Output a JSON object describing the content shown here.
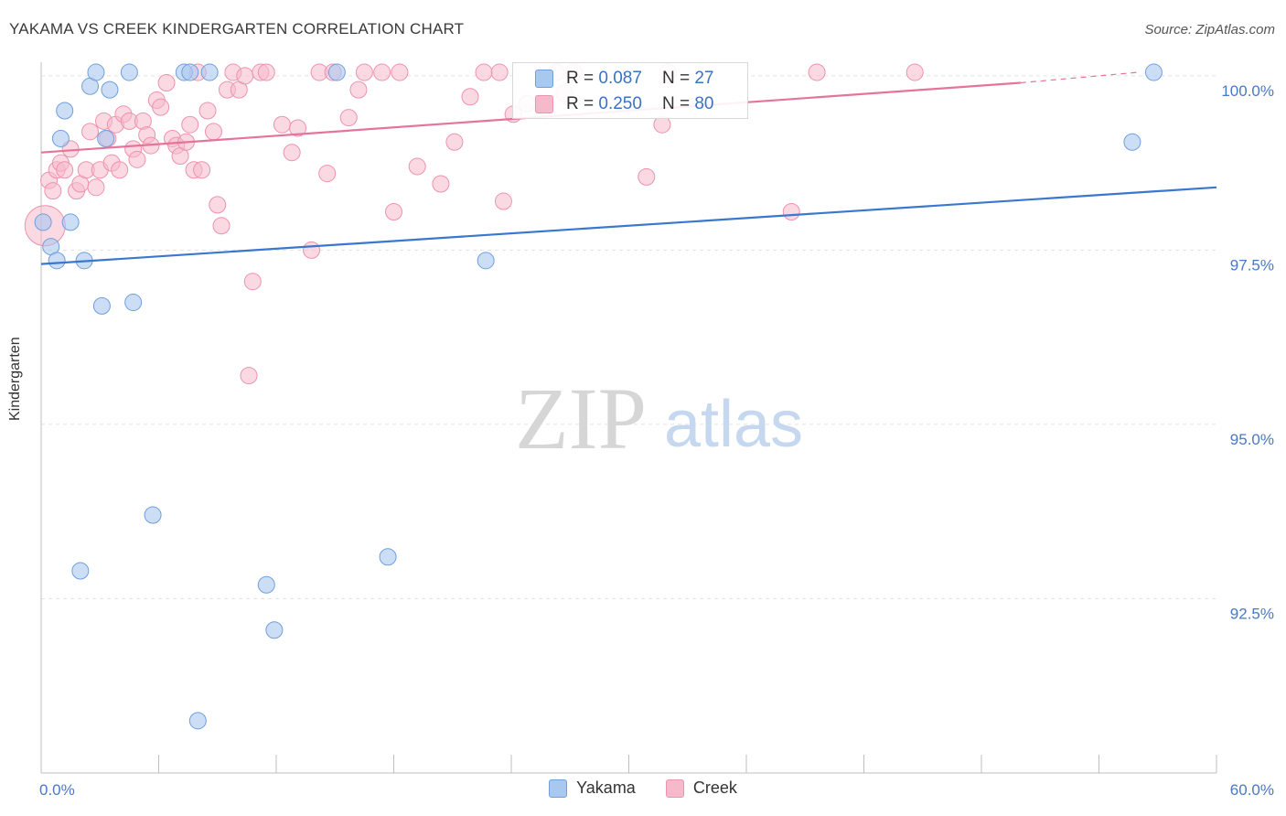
{
  "title": "YAKAMA VS CREEK KINDERGARTEN CORRELATION CHART",
  "source": "Source: ZipAtlas.com",
  "watermark": {
    "zip": "ZIP",
    "atlas": "atlas"
  },
  "colors": {
    "yakama_fill": "#a9c8f0",
    "yakama_stroke": "#6f9fdc",
    "yakama_line": "#3a78cf",
    "creek_fill": "#f6b9cc",
    "creek_stroke": "#ee92ae",
    "creek_line": "#e6739a",
    "axis_text": "#4a78c4",
    "grid": "#e3e3e3"
  },
  "legend_box": {
    "yakama": {
      "r_label": "R = ",
      "r_value": "0.087",
      "n_label": "N = ",
      "n_value": "27"
    },
    "creek": {
      "r_label": "R = ",
      "r_value": "0.250",
      "n_label": "N = ",
      "n_value": "80"
    }
  },
  "chart_data": {
    "type": "scatter",
    "title": "YAKAMA VS CREEK KINDERGARTEN CORRELATION CHART",
    "xlabel": "",
    "ylabel": "Kindergarten",
    "xlim": [
      0,
      60
    ],
    "ylim": [
      90.0,
      100.3
    ],
    "x_tick_labels": [
      "0.0%",
      "60.0%"
    ],
    "y_ticks": [
      92.5,
      95.0,
      97.5,
      100.0
    ],
    "y_tick_labels": [
      "92.5%",
      "95.0%",
      "97.5%",
      "100.0%"
    ],
    "grid": true,
    "legend_position": "bottom",
    "series": [
      {
        "name": "Yakama",
        "trend": {
          "x": [
            0,
            60
          ],
          "y": [
            97.3,
            98.4
          ]
        },
        "points": [
          {
            "x": 0.1,
            "y": 97.9
          },
          {
            "x": 0.5,
            "y": 97.55
          },
          {
            "x": 0.8,
            "y": 97.35
          },
          {
            "x": 1.0,
            "y": 99.1
          },
          {
            "x": 1.2,
            "y": 99.5
          },
          {
            "x": 1.5,
            "y": 97.9
          },
          {
            "x": 2.2,
            "y": 97.35
          },
          {
            "x": 2.5,
            "y": 99.85
          },
          {
            "x": 2.8,
            "y": 100.05
          },
          {
            "x": 3.1,
            "y": 96.7
          },
          {
            "x": 3.3,
            "y": 99.1
          },
          {
            "x": 3.5,
            "y": 99.8
          },
          {
            "x": 4.5,
            "y": 100.05
          },
          {
            "x": 4.7,
            "y": 96.75
          },
          {
            "x": 5.7,
            "y": 93.7
          },
          {
            "x": 7.3,
            "y": 100.05
          },
          {
            "x": 7.6,
            "y": 100.05
          },
          {
            "x": 8.6,
            "y": 100.05
          },
          {
            "x": 8.0,
            "y": 90.75
          },
          {
            "x": 11.5,
            "y": 92.7
          },
          {
            "x": 11.9,
            "y": 92.05
          },
          {
            "x": 15.1,
            "y": 100.05
          },
          {
            "x": 17.7,
            "y": 93.1
          },
          {
            "x": 22.7,
            "y": 97.35
          },
          {
            "x": 2.0,
            "y": 92.9
          },
          {
            "x": 55.7,
            "y": 99.05
          },
          {
            "x": 56.8,
            "y": 100.05
          }
        ]
      },
      {
        "name": "Creek",
        "trend": {
          "x": [
            0,
            50
          ],
          "y": [
            98.9,
            99.9
          ]
        },
        "trend_dashed": {
          "x": [
            50,
            56
          ],
          "y": [
            99.9,
            100.05
          ]
        },
        "points": [
          {
            "x": 0.2,
            "y": 97.85
          },
          {
            "x": 0.4,
            "y": 98.5
          },
          {
            "x": 0.6,
            "y": 98.35
          },
          {
            "x": 0.8,
            "y": 98.65
          },
          {
            "x": 1.0,
            "y": 98.75
          },
          {
            "x": 1.2,
            "y": 98.65
          },
          {
            "x": 1.5,
            "y": 98.95
          },
          {
            "x": 1.8,
            "y": 98.35
          },
          {
            "x": 2.0,
            "y": 98.45
          },
          {
            "x": 2.3,
            "y": 98.65
          },
          {
            "x": 2.5,
            "y": 99.2
          },
          {
            "x": 2.8,
            "y": 98.4
          },
          {
            "x": 3.0,
            "y": 98.65
          },
          {
            "x": 3.2,
            "y": 99.35
          },
          {
            "x": 3.4,
            "y": 99.1
          },
          {
            "x": 3.6,
            "y": 98.75
          },
          {
            "x": 3.8,
            "y": 99.3
          },
          {
            "x": 4.0,
            "y": 98.65
          },
          {
            "x": 4.2,
            "y": 99.45
          },
          {
            "x": 4.5,
            "y": 99.35
          },
          {
            "x": 4.7,
            "y": 98.95
          },
          {
            "x": 4.9,
            "y": 98.8
          },
          {
            "x": 5.2,
            "y": 99.35
          },
          {
            "x": 5.4,
            "y": 99.15
          },
          {
            "x": 5.6,
            "y": 99.0
          },
          {
            "x": 5.9,
            "y": 99.65
          },
          {
            "x": 6.1,
            "y": 99.55
          },
          {
            "x": 6.4,
            "y": 99.9
          },
          {
            "x": 6.7,
            "y": 99.1
          },
          {
            "x": 6.9,
            "y": 99.0
          },
          {
            "x": 7.1,
            "y": 98.85
          },
          {
            "x": 7.4,
            "y": 99.05
          },
          {
            "x": 7.6,
            "y": 99.3
          },
          {
            "x": 7.8,
            "y": 98.65
          },
          {
            "x": 8.0,
            "y": 100.05
          },
          {
            "x": 8.2,
            "y": 98.65
          },
          {
            "x": 8.5,
            "y": 99.5
          },
          {
            "x": 8.8,
            "y": 99.2
          },
          {
            "x": 9.0,
            "y": 98.15
          },
          {
            "x": 9.2,
            "y": 97.85
          },
          {
            "x": 9.5,
            "y": 99.8
          },
          {
            "x": 9.8,
            "y": 100.05
          },
          {
            "x": 10.1,
            "y": 99.8
          },
          {
            "x": 10.4,
            "y": 100.0
          },
          {
            "x": 10.6,
            "y": 95.7
          },
          {
            "x": 10.8,
            "y": 97.05
          },
          {
            "x": 11.2,
            "y": 100.05
          },
          {
            "x": 11.5,
            "y": 100.05
          },
          {
            "x": 12.3,
            "y": 99.3
          },
          {
            "x": 12.8,
            "y": 98.9
          },
          {
            "x": 13.1,
            "y": 99.25
          },
          {
            "x": 13.8,
            "y": 97.5
          },
          {
            "x": 14.2,
            "y": 100.05
          },
          {
            "x": 14.9,
            "y": 100.05
          },
          {
            "x": 14.6,
            "y": 98.6
          },
          {
            "x": 15.7,
            "y": 99.4
          },
          {
            "x": 16.2,
            "y": 99.8
          },
          {
            "x": 16.5,
            "y": 100.05
          },
          {
            "x": 17.4,
            "y": 100.05
          },
          {
            "x": 18.0,
            "y": 98.05
          },
          {
            "x": 18.3,
            "y": 100.05
          },
          {
            "x": 19.2,
            "y": 98.7
          },
          {
            "x": 20.4,
            "y": 98.45
          },
          {
            "x": 21.1,
            "y": 99.05
          },
          {
            "x": 21.9,
            "y": 99.7
          },
          {
            "x": 22.6,
            "y": 100.05
          },
          {
            "x": 23.4,
            "y": 100.05
          },
          {
            "x": 23.6,
            "y": 98.2
          },
          {
            "x": 24.1,
            "y": 99.45
          },
          {
            "x": 24.8,
            "y": 99.6
          },
          {
            "x": 25.7,
            "y": 99.55
          },
          {
            "x": 26.7,
            "y": 99.75
          },
          {
            "x": 27.2,
            "y": 100.05
          },
          {
            "x": 30.9,
            "y": 98.55
          },
          {
            "x": 31.7,
            "y": 99.3
          },
          {
            "x": 32.0,
            "y": 100.05
          },
          {
            "x": 38.3,
            "y": 98.05
          },
          {
            "x": 39.6,
            "y": 100.05
          },
          {
            "x": 44.6,
            "y": 100.05
          },
          {
            "x": 26.3,
            "y": 100.05
          }
        ]
      }
    ]
  }
}
